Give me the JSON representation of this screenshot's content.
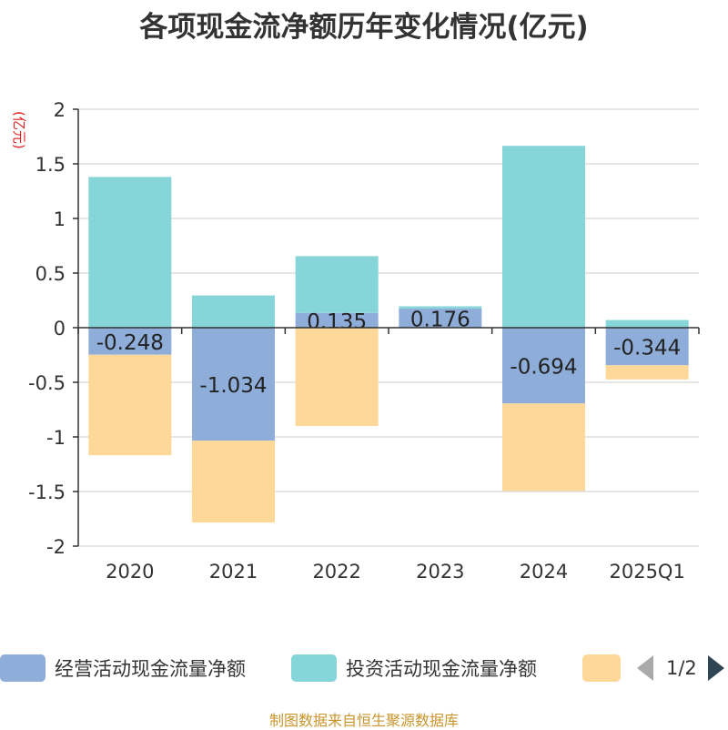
{
  "chart_data": {
    "type": "bar",
    "stacked": true,
    "title": "各项现金流净额历年变化情况(亿元)",
    "ylabel": "(亿元)",
    "xlabel": "",
    "ylim": [
      -2,
      2
    ],
    "yticks": [
      2,
      1.5,
      1,
      0.5,
      0,
      -0.5,
      -1,
      -1.5,
      -2
    ],
    "categories": [
      "2020",
      "2021",
      "2022",
      "2023",
      "2024",
      "2025Q1"
    ],
    "series": [
      {
        "name": "经营活动现金流量净额",
        "color": "#8eadd9",
        "values": [
          -0.248,
          -1.034,
          0.135,
          0.176,
          -0.694,
          -0.344
        ],
        "show_labels": true
      },
      {
        "name": "投资活动现金流量净额",
        "color": "#86d5d8",
        "values": [
          1.38,
          0.295,
          0.52,
          0.02,
          1.665,
          0.07
        ],
        "show_labels": false
      },
      {
        "name": "",
        "color": "#fed898",
        "values": [
          -0.92,
          -0.75,
          -0.9,
          0,
          -0.8,
          -0.13
        ],
        "show_labels": false
      }
    ],
    "grid": true,
    "legend_position": "bottom"
  },
  "legend": {
    "items": [
      {
        "label": "经营活动现金流量净额",
        "color": "#8eadd9"
      },
      {
        "label": "投资活动现金流量净额",
        "color": "#86d5d8"
      },
      {
        "label": "",
        "color": "#fed898"
      }
    ],
    "page": "1/2"
  },
  "source": "制图数据来自恒生聚源数据库"
}
